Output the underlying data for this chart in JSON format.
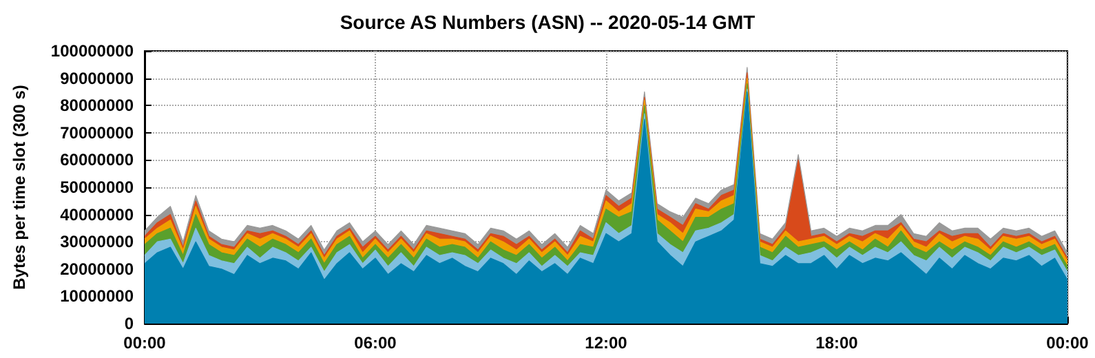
{
  "chart_data": {
    "type": "area",
    "stacked": true,
    "title": "Source AS Numbers (ASN) -- 2020-05-14 GMT",
    "ylabel": "Bytes per time slot (300 s)",
    "x": [
      0,
      0.33,
      0.67,
      1,
      1.33,
      1.67,
      2,
      2.33,
      2.67,
      3,
      3.33,
      3.67,
      4,
      4.33,
      4.67,
      5,
      5.33,
      5.67,
      6,
      6.33,
      6.67,
      7,
      7.33,
      7.67,
      8,
      8.33,
      8.67,
      9,
      9.33,
      9.67,
      10,
      10.33,
      10.67,
      11,
      11.33,
      11.67,
      12,
      12.33,
      12.67,
      13,
      13.33,
      13.67,
      14,
      14.33,
      14.67,
      15,
      15.33,
      15.67,
      16,
      16.33,
      16.67,
      17,
      17.33,
      17.67,
      18,
      18.33,
      18.67,
      19,
      19.33,
      19.67,
      20,
      20.33,
      20.67,
      21,
      21.33,
      21.67,
      22,
      22.33,
      22.67,
      23,
      23.33,
      23.67,
      24
    ],
    "series": [
      {
        "color": "#0080b0",
        "values": [
          22000000,
          26000000,
          28000000,
          20000000,
          30000000,
          21000000,
          20000000,
          18000000,
          25000000,
          22000000,
          24000000,
          23000000,
          20000000,
          26000000,
          16000000,
          22000000,
          26000000,
          20000000,
          24000000,
          18000000,
          22000000,
          19000000,
          25000000,
          22000000,
          24000000,
          21000000,
          19000000,
          24000000,
          22000000,
          18000000,
          23000000,
          19000000,
          22000000,
          18000000,
          24000000,
          22000000,
          33000000,
          30000000,
          33000000,
          75000000,
          30000000,
          25000000,
          21000000,
          30000000,
          32000000,
          34000000,
          38000000,
          85000000,
          22000000,
          21000000,
          25000000,
          22000000,
          22000000,
          25000000,
          20000000,
          25000000,
          22000000,
          24000000,
          23000000,
          26000000,
          22000000,
          18000000,
          24000000,
          20000000,
          25000000,
          22000000,
          20000000,
          24000000,
          23000000,
          25000000,
          21000000,
          24000000,
          16000000
        ]
      },
      {
        "color": "#7fbfdf",
        "values": [
          3000000,
          4000000,
          3000000,
          2000000,
          5000000,
          4000000,
          3000000,
          4000000,
          3000000,
          2000000,
          4000000,
          3000000,
          3000000,
          2000000,
          3000000,
          4000000,
          3000000,
          2000000,
          3000000,
          3000000,
          4000000,
          2000000,
          3000000,
          3000000,
          2000000,
          4000000,
          3000000,
          3000000,
          2000000,
          4000000,
          3000000,
          2000000,
          3000000,
          3000000,
          2000000,
          3000000,
          4000000,
          3000000,
          3000000,
          2000000,
          3000000,
          4000000,
          5000000,
          4000000,
          3000000,
          3000000,
          2000000,
          1000000,
          3000000,
          2000000,
          3000000,
          3000000,
          4000000,
          3000000,
          4000000,
          3000000,
          3000000,
          4000000,
          3000000,
          4000000,
          3000000,
          5000000,
          4000000,
          4000000,
          3000000,
          4000000,
          3000000,
          4000000,
          3000000,
          3000000,
          4000000,
          3000000,
          3000000
        ]
      },
      {
        "color": "#5aa02c",
        "values": [
          4000000,
          3000000,
          4000000,
          3000000,
          5000000,
          4000000,
          3000000,
          3000000,
          3000000,
          4000000,
          3000000,
          3000000,
          3000000,
          3000000,
          3000000,
          3000000,
          3000000,
          2000000,
          2000000,
          3000000,
          3000000,
          3000000,
          3000000,
          3000000,
          3000000,
          3000000,
          2000000,
          3000000,
          3000000,
          3000000,
          3000000,
          3000000,
          3000000,
          2000000,
          3000000,
          3000000,
          5000000,
          6000000,
          5000000,
          3000000,
          5000000,
          5000000,
          4000000,
          5000000,
          4000000,
          5000000,
          4000000,
          2000000,
          3000000,
          3000000,
          4000000,
          3000000,
          3000000,
          2000000,
          3000000,
          2000000,
          2000000,
          3000000,
          2000000,
          4000000,
          3000000,
          3000000,
          2000000,
          3000000,
          2000000,
          2000000,
          2000000,
          2000000,
          2000000,
          2000000,
          2000000,
          2000000,
          2000000
        ]
      },
      {
        "color": "#f0a000",
        "values": [
          2000000,
          2000000,
          3000000,
          2000000,
          3000000,
          2000000,
          2000000,
          2000000,
          2000000,
          3000000,
          2000000,
          2000000,
          2000000,
          2000000,
          2000000,
          2000000,
          2000000,
          2000000,
          2000000,
          2000000,
          2000000,
          2000000,
          2000000,
          3000000,
          2000000,
          2000000,
          2000000,
          2000000,
          3000000,
          2000000,
          2000000,
          2000000,
          2000000,
          2000000,
          3000000,
          2000000,
          3000000,
          2000000,
          3000000,
          2000000,
          2000000,
          3000000,
          3000000,
          3000000,
          2000000,
          3000000,
          3000000,
          2000000,
          2000000,
          2000000,
          2000000,
          2000000,
          2000000,
          2000000,
          2000000,
          2000000,
          3000000,
          2000000,
          3000000,
          2000000,
          2000000,
          2000000,
          3000000,
          3000000,
          2000000,
          3000000,
          2000000,
          2000000,
          3000000,
          2000000,
          2000000,
          2000000,
          2000000
        ]
      },
      {
        "color": "#d84a1b",
        "values": [
          1000000,
          2000000,
          2000000,
          1000000,
          2000000,
          1000000,
          1000000,
          1000000,
          1000000,
          2000000,
          1000000,
          1000000,
          1000000,
          1000000,
          1000000,
          1000000,
          1000000,
          2000000,
          1000000,
          1000000,
          1000000,
          1000000,
          1000000,
          2000000,
          1000000,
          1000000,
          1000000,
          1000000,
          2000000,
          2000000,
          1000000,
          1000000,
          1000000,
          1000000,
          2000000,
          1000000,
          2000000,
          2000000,
          2000000,
          1000000,
          2000000,
          2000000,
          3000000,
          2000000,
          1000000,
          2000000,
          2000000,
          2000000,
          1000000,
          1000000,
          1000000,
          30000000,
          1000000,
          1000000,
          1000000,
          1000000,
          2000000,
          1000000,
          3000000,
          1000000,
          1000000,
          2000000,
          1000000,
          2000000,
          1000000,
          2000000,
          1000000,
          1000000,
          1000000,
          1000000,
          1000000,
          1000000,
          1000000
        ]
      },
      {
        "color": "#999999",
        "values": [
          2000000,
          2000000,
          3000000,
          2000000,
          2000000,
          2000000,
          2000000,
          2000000,
          2000000,
          2000000,
          2000000,
          2000000,
          2000000,
          2000000,
          2000000,
          2000000,
          2000000,
          2000000,
          2000000,
          2000000,
          2000000,
          2000000,
          2000000,
          2000000,
          2000000,
          2000000,
          2000000,
          2000000,
          2000000,
          2000000,
          2000000,
          2000000,
          2000000,
          2000000,
          2000000,
          2000000,
          2000000,
          2000000,
          2000000,
          2000000,
          2000000,
          2000000,
          3000000,
          2000000,
          2000000,
          2000000,
          2000000,
          2000000,
          2000000,
          2000000,
          2000000,
          2000000,
          2000000,
          2000000,
          2000000,
          2000000,
          2000000,
          2000000,
          2000000,
          3000000,
          2000000,
          2000000,
          3000000,
          2000000,
          2000000,
          2000000,
          3000000,
          2000000,
          2000000,
          2000000,
          2000000,
          2000000,
          2000000
        ]
      }
    ],
    "xlim": [
      0,
      24
    ],
    "xticks": [
      {
        "value": 0,
        "label": "00:00"
      },
      {
        "value": 6,
        "label": "06:00"
      },
      {
        "value": 12,
        "label": "12:00"
      },
      {
        "value": 18,
        "label": "18:00"
      },
      {
        "value": 24,
        "label": "00:00"
      }
    ],
    "ylim": [
      0,
      100000000
    ],
    "yticks": [
      0,
      10000000,
      20000000,
      30000000,
      40000000,
      50000000,
      60000000,
      70000000,
      80000000,
      90000000,
      100000000
    ],
    "grid": true
  }
}
